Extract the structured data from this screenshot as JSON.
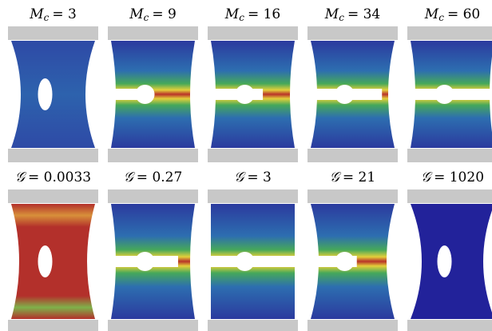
{
  "panels": {
    "top": [
      {
        "symbol": "M",
        "sub": "c",
        "rel": "= 3"
      },
      {
        "symbol": "M",
        "sub": "c",
        "rel": "= 9"
      },
      {
        "symbol": "M",
        "sub": "c",
        "rel": "= 16"
      },
      {
        "symbol": "M",
        "sub": "c",
        "rel": "= 34"
      },
      {
        "symbol": "M",
        "sub": "c",
        "rel": "= 60"
      }
    ],
    "bottom": [
      {
        "symbol": "𝒢",
        "rel": "= 0.0033"
      },
      {
        "symbol": "𝒢",
        "rel": "= 0.27"
      },
      {
        "symbol": "𝒢",
        "rel": "= 3"
      },
      {
        "symbol": "𝒢",
        "rel": "= 21"
      },
      {
        "symbol": "𝒢",
        "rel": "= 1020"
      }
    ]
  }
}
